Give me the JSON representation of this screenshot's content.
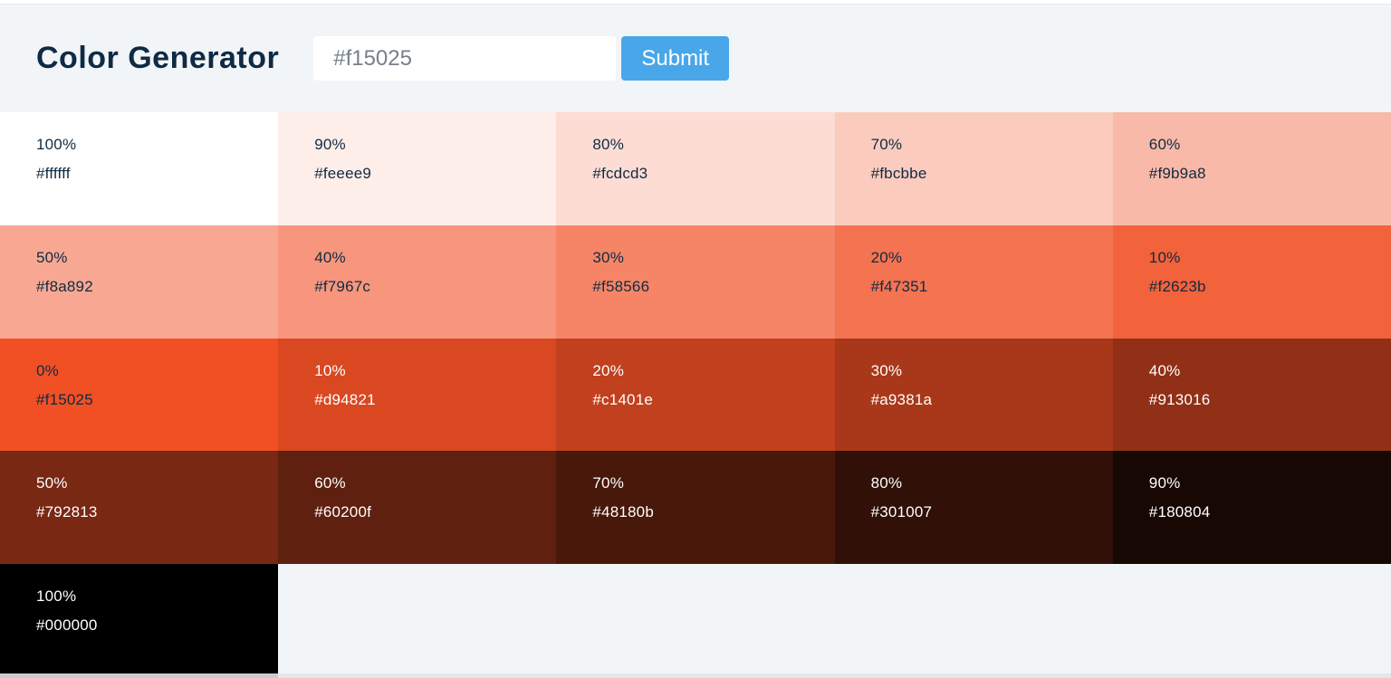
{
  "header": {
    "title": "Color Generator",
    "input_value": "#f15025",
    "submit_label": "Submit"
  },
  "ui": {
    "accent": "#49a6e9",
    "header_bg": "#f1f5f8",
    "title_color": "#102a43",
    "input_text_color": "#75808a",
    "dark_text": "#102a42",
    "light_text": "#ffffff",
    "scrollbar_track": "#e4e7e9",
    "scrollbar_thumb": "#c9cbcd"
  },
  "swatches": [
    {
      "percent": "100%",
      "hex": "#ffffff",
      "text": "dark"
    },
    {
      "percent": "90%",
      "hex": "#feeee9",
      "text": "dark"
    },
    {
      "percent": "80%",
      "hex": "#fcdcd3",
      "text": "dark"
    },
    {
      "percent": "70%",
      "hex": "#fbcbbe",
      "text": "dark"
    },
    {
      "percent": "60%",
      "hex": "#f9b9a8",
      "text": "dark"
    },
    {
      "percent": "50%",
      "hex": "#f8a892",
      "text": "dark"
    },
    {
      "percent": "40%",
      "hex": "#f7967c",
      "text": "dark"
    },
    {
      "percent": "30%",
      "hex": "#f58566",
      "text": "dark"
    },
    {
      "percent": "20%",
      "hex": "#f47351",
      "text": "dark"
    },
    {
      "percent": "10%",
      "hex": "#f2623b",
      "text": "dark"
    },
    {
      "percent": "0%",
      "hex": "#f15025",
      "text": "dark"
    },
    {
      "percent": "10%",
      "hex": "#d94821",
      "text": "light"
    },
    {
      "percent": "20%",
      "hex": "#c1401e",
      "text": "light"
    },
    {
      "percent": "30%",
      "hex": "#a9381a",
      "text": "light"
    },
    {
      "percent": "40%",
      "hex": "#913016",
      "text": "light"
    },
    {
      "percent": "50%",
      "hex": "#792813",
      "text": "light"
    },
    {
      "percent": "60%",
      "hex": "#60200f",
      "text": "light"
    },
    {
      "percent": "70%",
      "hex": "#48180b",
      "text": "light"
    },
    {
      "percent": "80%",
      "hex": "#301007",
      "text": "light"
    },
    {
      "percent": "90%",
      "hex": "#180804",
      "text": "light"
    },
    {
      "percent": "100%",
      "hex": "#000000",
      "text": "light"
    }
  ]
}
